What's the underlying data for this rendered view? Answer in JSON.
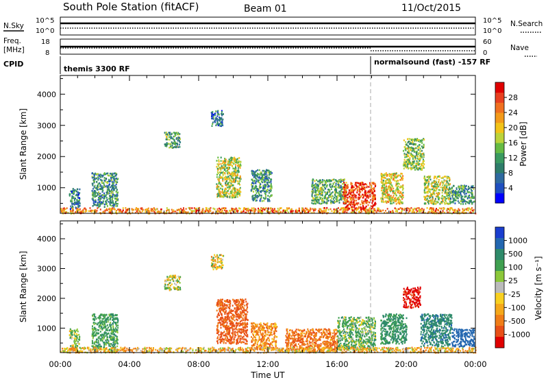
{
  "header": {
    "title": "South Pole Station (fitACF)",
    "beam": "Beam 01",
    "date": "11/Oct/2015"
  },
  "noise_panel": {
    "left_label": "N.Sky",
    "right_label": "N.Search",
    "left_ticks": [
      "10^5",
      "10^0"
    ],
    "right_ticks": [
      "10^5",
      "10^0"
    ]
  },
  "freq_panel": {
    "left_label_1": "Freq.",
    "left_label_2": "[MHz]",
    "right_label": "Nave",
    "left_ticks": [
      "18",
      "8"
    ],
    "right_ticks": [
      "60",
      "0"
    ]
  },
  "cpid_panel": {
    "label": "CPID",
    "modes": [
      {
        "name": "themis 3300 RF",
        "start": 0
      },
      {
        "name": "normalsound (fast) -157 RF",
        "start": 18
      }
    ]
  },
  "axes": {
    "ylabel": "Slant Range [km]",
    "xlabel": "Time UT",
    "yticks": [
      1000,
      2000,
      3000,
      4000
    ],
    "ylim": [
      180,
      4600
    ],
    "xticks": [
      "00:00",
      "04:00",
      "08:00",
      "12:00",
      "16:00",
      "20:00",
      "00:00"
    ],
    "xlim": [
      0,
      24
    ]
  },
  "colorbars": {
    "power": {
      "label": "Power [dB]",
      "ticks": [
        "4",
        "8",
        "12",
        "16",
        "20",
        "24",
        "28"
      ],
      "colors": [
        "#0000ff",
        "#1f4fc0",
        "#2f6aa0",
        "#2e7d6a",
        "#3a9a60",
        "#66bb44",
        "#bcd33a",
        "#f2c318",
        "#f39a1a",
        "#f07020",
        "#e84020",
        "#e00000"
      ]
    },
    "velocity": {
      "label": "Velocity [m s⁻¹]",
      "ticks": [
        "1000",
        "500",
        "100",
        "25",
        "-25",
        "-100",
        "-500",
        "-1000"
      ],
      "colors": [
        "#1a3ecf",
        "#2367b0",
        "#2e8a6a",
        "#40a050",
        "#8cc83a",
        "#bbbbbb",
        "#f8d020",
        "#f5a81a",
        "#f07d18",
        "#e85018",
        "#e00000"
      ]
    }
  },
  "chart_data": [
    {
      "type": "heatmap",
      "title": "Power [dB]",
      "xlabel": "Time UT",
      "ylabel": "Slant Range [km]",
      "xlim": [
        0,
        24
      ],
      "ylim": [
        180,
        4600
      ],
      "x": [
        0.5,
        1.5,
        2.5,
        3.5,
        4.5,
        5.5,
        6.5,
        7.5,
        8.5,
        9.5,
        10.5,
        11.5,
        12.5,
        13.5,
        14.5,
        15.5,
        16.5,
        17.5,
        18.5,
        19.5,
        20.5,
        21.5,
        22.5,
        23.5
      ],
      "blobs": [
        {
          "t0": 0.5,
          "t1": 1.1,
          "r0": 300,
          "r1": 1000,
          "value": 8
        },
        {
          "t0": 1.8,
          "t1": 3.3,
          "r0": 400,
          "r1": 1500,
          "value": 10
        },
        {
          "t0": 6.0,
          "t1": 6.9,
          "r0": 2300,
          "r1": 2800,
          "value": 12
        },
        {
          "t0": 8.7,
          "t1": 9.4,
          "r0": 3000,
          "r1": 3500,
          "value": 8
        },
        {
          "t0": 9.0,
          "t1": 10.4,
          "r0": 700,
          "r1": 2000,
          "value": 16
        },
        {
          "t0": 11.0,
          "t1": 12.2,
          "r0": 600,
          "r1": 1600,
          "value": 10
        },
        {
          "t0": 14.5,
          "t1": 16.5,
          "r0": 500,
          "r1": 1300,
          "value": 12
        },
        {
          "t0": 16.3,
          "t1": 18.2,
          "r0": 300,
          "r1": 1200,
          "value": 26
        },
        {
          "t0": 18.5,
          "t1": 19.8,
          "r0": 500,
          "r1": 1500,
          "value": 18
        },
        {
          "t0": 19.8,
          "t1": 21.0,
          "r0": 1600,
          "r1": 2600,
          "value": 14
        },
        {
          "t0": 21.0,
          "t1": 22.5,
          "r0": 500,
          "r1": 1400,
          "value": 16
        },
        {
          "t0": 22.5,
          "t1": 23.9,
          "r0": 500,
          "r1": 1100,
          "value": 10
        },
        {
          "t0": 0.0,
          "t1": 24.0,
          "r0": 200,
          "r1": 380,
          "value": 22
        }
      ]
    },
    {
      "type": "heatmap",
      "title": "Velocity [m s⁻¹]",
      "xlabel": "Time UT",
      "ylabel": "Slant Range [km]",
      "xlim": [
        0,
        24
      ],
      "ylim": [
        180,
        4600
      ],
      "x": [
        0.5,
        1.5,
        2.5,
        3.5,
        4.5,
        5.5,
        6.5,
        7.5,
        8.5,
        9.5,
        10.5,
        11.5,
        12.5,
        13.5,
        14.5,
        15.5,
        16.5,
        17.5,
        18.5,
        19.5,
        20.5,
        21.5,
        22.5,
        23.5
      ],
      "blobs": [
        {
          "t0": 0.5,
          "t1": 1.1,
          "r0": 300,
          "r1": 1000,
          "value": 100
        },
        {
          "t0": 1.8,
          "t1": 3.3,
          "r0": 300,
          "r1": 1500,
          "value": 200
        },
        {
          "t0": 6.0,
          "t1": 6.9,
          "r0": 2300,
          "r1": 2800,
          "value": 50
        },
        {
          "t0": 8.7,
          "t1": 9.4,
          "r0": 3000,
          "r1": 3500,
          "value": 0
        },
        {
          "t0": 9.0,
          "t1": 10.8,
          "r0": 500,
          "r1": 2000,
          "value": -300
        },
        {
          "t0": 11.0,
          "t1": 12.5,
          "r0": 300,
          "r1": 1200,
          "value": -150
        },
        {
          "t0": 13.0,
          "t1": 16.0,
          "r0": 250,
          "r1": 1000,
          "value": -200
        },
        {
          "t0": 16.0,
          "t1": 18.2,
          "r0": 300,
          "r1": 1400,
          "value": 150
        },
        {
          "t0": 18.5,
          "t1": 20.0,
          "r0": 500,
          "r1": 1500,
          "value": 300
        },
        {
          "t0": 19.8,
          "t1": 20.8,
          "r0": 1700,
          "r1": 2400,
          "value": -600
        },
        {
          "t0": 20.8,
          "t1": 22.6,
          "r0": 400,
          "r1": 1500,
          "value": 400
        },
        {
          "t0": 22.6,
          "t1": 23.9,
          "r0": 400,
          "r1": 1000,
          "value": 700
        },
        {
          "t0": 0.0,
          "t1": 24.0,
          "r0": 200,
          "r1": 380,
          "value": -50
        }
      ]
    },
    {
      "type": "line",
      "title": "N.Sky / N.Search",
      "x": [
        0,
        4,
        8,
        12,
        16,
        20,
        24
      ],
      "series": [
        {
          "name": "N.Sky",
          "values": [
            5,
            5,
            5,
            5,
            5,
            5,
            5
          ]
        },
        {
          "name": "N.Search",
          "values": [
            2,
            2,
            2,
            2,
            2,
            2,
            2
          ]
        }
      ]
    },
    {
      "type": "line",
      "title": "Freq. / Nave",
      "x": [
        0,
        4,
        8,
        12,
        16,
        18,
        20,
        24
      ],
      "series": [
        {
          "name": "Freq. [MHz]",
          "values": [
            12,
            12,
            12,
            12,
            12,
            12,
            12,
            12
          ]
        },
        {
          "name": "Nave",
          "values": [
            30,
            30,
            30,
            30,
            30,
            18,
            18,
            18
          ]
        }
      ]
    }
  ]
}
